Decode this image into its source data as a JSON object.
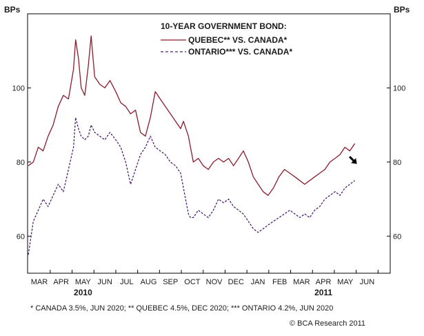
{
  "chart_data": {
    "type": "line",
    "title": "10-YEAR GOVERNMENT BOND:",
    "ylabel_left": "BPs",
    "ylabel_right": "BPs",
    "ylim": [
      50,
      120
    ],
    "yticks": [
      60,
      80,
      100
    ],
    "x_month_labels": [
      "MAR",
      "APR",
      "MAY",
      "JUN",
      "JUL",
      "AUG",
      "SEP",
      "OCT",
      "NOV",
      "DEC",
      "JAN",
      "FEB",
      "MAR",
      "APR",
      "MAY",
      "JUN"
    ],
    "x_start": "2010-03",
    "year_labels": [
      {
        "label": "2010",
        "month": "2010-05"
      },
      {
        "label": "2011",
        "month": "2011-04"
      }
    ],
    "grid": false,
    "legend_position": "top-center",
    "series": [
      {
        "name": "QUEBEC** VS. CANADA*",
        "style": "solid",
        "color": "#8b1a2b",
        "points": [
          [
            "2010-03-01",
            79
          ],
          [
            "2010-03-08",
            80
          ],
          [
            "2010-03-15",
            84
          ],
          [
            "2010-03-22",
            83
          ],
          [
            "2010-03-29",
            87
          ],
          [
            "2010-04-05",
            90
          ],
          [
            "2010-04-12",
            95
          ],
          [
            "2010-04-19",
            98
          ],
          [
            "2010-04-26",
            97
          ],
          [
            "2010-05-03",
            105
          ],
          [
            "2010-05-06",
            113
          ],
          [
            "2010-05-10",
            108
          ],
          [
            "2010-05-14",
            100
          ],
          [
            "2010-05-19",
            98
          ],
          [
            "2010-05-24",
            106
          ],
          [
            "2010-05-28",
            114
          ],
          [
            "2010-06-02",
            103
          ],
          [
            "2010-06-09",
            101
          ],
          [
            "2010-06-16",
            100
          ],
          [
            "2010-06-23",
            102
          ],
          [
            "2010-07-01",
            99
          ],
          [
            "2010-07-08",
            96
          ],
          [
            "2010-07-15",
            95
          ],
          [
            "2010-07-22",
            93
          ],
          [
            "2010-07-29",
            94
          ],
          [
            "2010-08-05",
            88
          ],
          [
            "2010-08-12",
            87
          ],
          [
            "2010-08-19",
            92
          ],
          [
            "2010-08-26",
            99
          ],
          [
            "2010-09-02",
            97
          ],
          [
            "2010-09-09",
            95
          ],
          [
            "2010-09-16",
            93
          ],
          [
            "2010-09-23",
            91
          ],
          [
            "2010-09-30",
            89
          ],
          [
            "2010-10-04",
            91
          ],
          [
            "2010-10-11",
            87
          ],
          [
            "2010-10-14",
            84
          ],
          [
            "2010-10-18",
            80
          ],
          [
            "2010-10-25",
            81
          ],
          [
            "2010-11-01",
            79
          ],
          [
            "2010-11-08",
            78
          ],
          [
            "2010-11-15",
            80
          ],
          [
            "2010-11-22",
            81
          ],
          [
            "2010-11-29",
            80
          ],
          [
            "2010-12-06",
            81
          ],
          [
            "2010-12-13",
            79
          ],
          [
            "2010-12-20",
            81
          ],
          [
            "2010-12-27",
            83
          ],
          [
            "2011-01-03",
            80
          ],
          [
            "2011-01-10",
            76
          ],
          [
            "2011-01-17",
            74
          ],
          [
            "2011-01-24",
            72
          ],
          [
            "2011-01-31",
            71
          ],
          [
            "2011-02-07",
            73
          ],
          [
            "2011-02-14",
            76
          ],
          [
            "2011-02-21",
            78
          ],
          [
            "2011-02-28",
            77
          ],
          [
            "2011-03-07",
            76
          ],
          [
            "2011-03-14",
            75
          ],
          [
            "2011-03-21",
            74
          ],
          [
            "2011-03-28",
            75
          ],
          [
            "2011-04-04",
            76
          ],
          [
            "2011-04-11",
            77
          ],
          [
            "2011-04-18",
            78
          ],
          [
            "2011-04-25",
            80
          ],
          [
            "2011-05-02",
            81
          ],
          [
            "2011-05-09",
            82
          ],
          [
            "2011-05-16",
            84
          ],
          [
            "2011-05-23",
            83
          ],
          [
            "2011-05-30",
            85
          ]
        ]
      },
      {
        "name": "ONTARIO*** VS. CANADA*",
        "style": "dashed",
        "color": "#4b2070",
        "points": [
          [
            "2010-03-01",
            55
          ],
          [
            "2010-03-08",
            64
          ],
          [
            "2010-03-15",
            67
          ],
          [
            "2010-03-22",
            70
          ],
          [
            "2010-03-29",
            68
          ],
          [
            "2010-04-05",
            71
          ],
          [
            "2010-04-12",
            74
          ],
          [
            "2010-04-19",
            72
          ],
          [
            "2010-04-26",
            78
          ],
          [
            "2010-05-03",
            84
          ],
          [
            "2010-05-06",
            92
          ],
          [
            "2010-05-10",
            89
          ],
          [
            "2010-05-14",
            87
          ],
          [
            "2010-05-19",
            86
          ],
          [
            "2010-05-24",
            87
          ],
          [
            "2010-05-28",
            90
          ],
          [
            "2010-06-02",
            88
          ],
          [
            "2010-06-09",
            87
          ],
          [
            "2010-06-16",
            86
          ],
          [
            "2010-06-23",
            88
          ],
          [
            "2010-07-01",
            86
          ],
          [
            "2010-07-08",
            84
          ],
          [
            "2010-07-15",
            80
          ],
          [
            "2010-07-22",
            74
          ],
          [
            "2010-07-29",
            78
          ],
          [
            "2010-08-05",
            82
          ],
          [
            "2010-08-12",
            84
          ],
          [
            "2010-08-19",
            87
          ],
          [
            "2010-08-26",
            84
          ],
          [
            "2010-09-02",
            83
          ],
          [
            "2010-09-09",
            82
          ],
          [
            "2010-09-16",
            80
          ],
          [
            "2010-09-23",
            79
          ],
          [
            "2010-09-30",
            77
          ],
          [
            "2010-10-04",
            73
          ],
          [
            "2010-10-11",
            66
          ],
          [
            "2010-10-14",
            65
          ],
          [
            "2010-10-18",
            65
          ],
          [
            "2010-10-25",
            67
          ],
          [
            "2010-11-01",
            66
          ],
          [
            "2010-11-08",
            65
          ],
          [
            "2010-11-15",
            67
          ],
          [
            "2010-11-22",
            70
          ],
          [
            "2010-11-29",
            69
          ],
          [
            "2010-12-06",
            70
          ],
          [
            "2010-12-13",
            68
          ],
          [
            "2010-12-20",
            67
          ],
          [
            "2010-12-27",
            66
          ],
          [
            "2011-01-03",
            64
          ],
          [
            "2011-01-10",
            62
          ],
          [
            "2011-01-17",
            61
          ],
          [
            "2011-01-24",
            62
          ],
          [
            "2011-01-31",
            63
          ],
          [
            "2011-02-07",
            64
          ],
          [
            "2011-02-14",
            65
          ],
          [
            "2011-02-21",
            66
          ],
          [
            "2011-02-28",
            67
          ],
          [
            "2011-03-07",
            66
          ],
          [
            "2011-03-14",
            65
          ],
          [
            "2011-03-21",
            66
          ],
          [
            "2011-03-28",
            65
          ],
          [
            "2011-04-04",
            67
          ],
          [
            "2011-04-11",
            68
          ],
          [
            "2011-04-18",
            70
          ],
          [
            "2011-04-25",
            71
          ],
          [
            "2011-05-02",
            72
          ],
          [
            "2011-05-09",
            71
          ],
          [
            "2011-05-16",
            73
          ],
          [
            "2011-05-23",
            74
          ],
          [
            "2011-05-30",
            75
          ]
        ]
      }
    ],
    "annotation_arrow": {
      "direction": "down-right",
      "color": "#000000"
    },
    "footnote": "* CANADA 3.5%, JUN 2020; **  QUEBEC 4.5%, DEC 2020; *** ONTARIO 4.2%, JUN 2020",
    "credit": "© BCA Research 2011"
  }
}
